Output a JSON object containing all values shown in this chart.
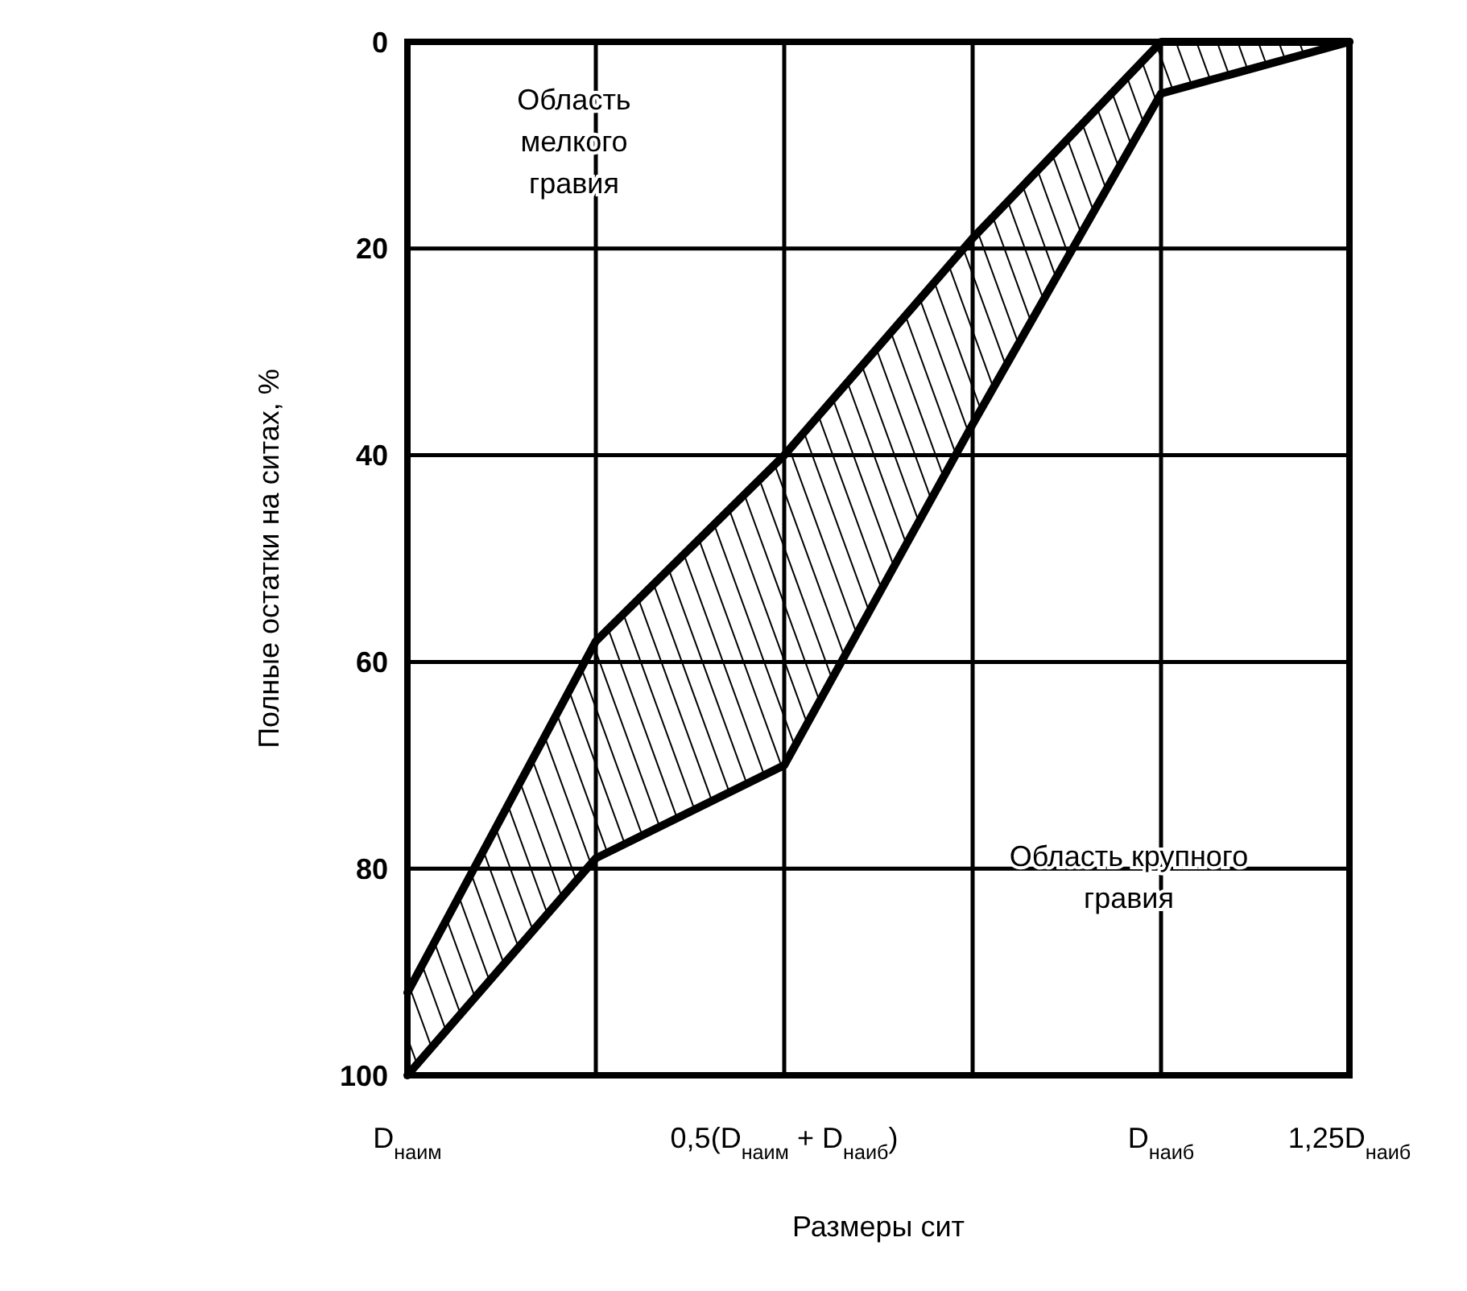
{
  "chart_data": {
    "type": "line",
    "xlabel": "Размеры сит",
    "ylabel": "Полные остатки на ситах, %",
    "categories": [
      "D$_{наим}$",
      null,
      "0,5(D$_{наим}$ + D$_{наиб}$)",
      null,
      "D$_{наиб}$",
      "1,25D$_{наиб}$"
    ],
    "series": [
      {
        "color": "#000000",
        "values": [
          92,
          58,
          40,
          19,
          0,
          0
        ],
        "lower": [
          92,
          58,
          40,
          19,
          0,
          0
        ],
        "upper": [
          100,
          79,
          70,
          37,
          5,
          0
        ]
      },
      {
        "color": "#000000",
        "values": [
          100,
          79,
          70,
          37,
          5,
          0
        ]
      }
    ],
    "ylim": [
      100,
      0
    ],
    "yticks": [
      0,
      20,
      40,
      60,
      80,
      100
    ],
    "grid": true,
    "marker": "none",
    "line_style": "solid",
    "annotations": [
      "Область мелкого гравия",
      "Область крупного гравия"
    ]
  }
}
